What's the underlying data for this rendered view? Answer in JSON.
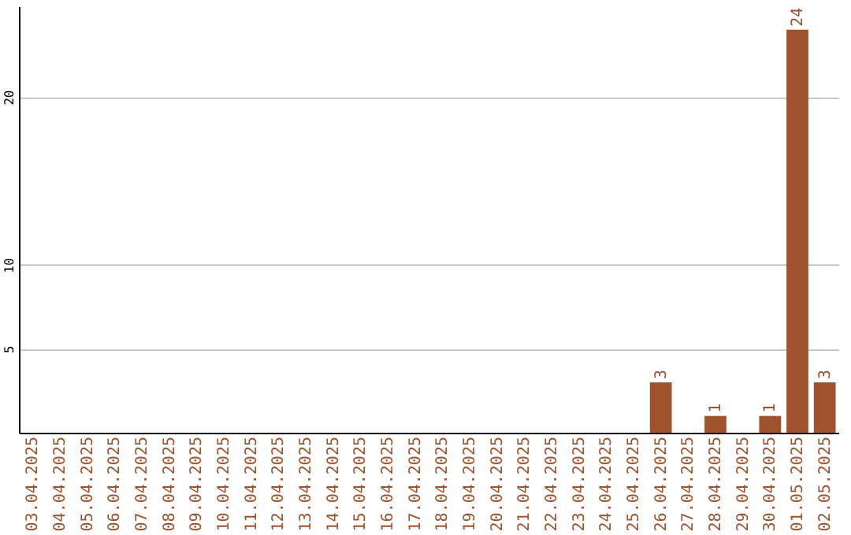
{
  "chart_data": {
    "type": "bar",
    "categories": [
      "03.04.2025",
      "04.04.2025",
      "05.04.2025",
      "06.04.2025",
      "07.04.2025",
      "08.04.2025",
      "09.04.2025",
      "10.04.2025",
      "11.04.2025",
      "12.04.2025",
      "13.04.2025",
      "14.04.2025",
      "15.04.2025",
      "16.04.2025",
      "17.04.2025",
      "18.04.2025",
      "19.04.2025",
      "20.04.2025",
      "21.04.2025",
      "22.04.2025",
      "23.04.2025",
      "24.04.2025",
      "25.04.2025",
      "26.04.2025",
      "27.04.2025",
      "28.04.2025",
      "29.04.2025",
      "30.04.2025",
      "01.05.2025",
      "02.05.2025"
    ],
    "values": [
      0,
      0,
      0,
      0,
      0,
      0,
      0,
      0,
      0,
      0,
      0,
      0,
      0,
      0,
      0,
      0,
      0,
      0,
      0,
      0,
      0,
      0,
      0,
      3,
      0,
      1,
      0,
      1,
      24,
      3
    ],
    "value_labels": [
      null,
      null,
      null,
      null,
      null,
      null,
      null,
      null,
      null,
      null,
      null,
      null,
      null,
      null,
      null,
      null,
      null,
      null,
      null,
      null,
      null,
      null,
      null,
      "3",
      null,
      "1",
      null,
      "1",
      "24",
      "3"
    ],
    "color": "#a0522d",
    "ylim": [
      0,
      25.4
    ],
    "yticks": [
      5,
      10,
      20
    ],
    "grid": "y"
  }
}
